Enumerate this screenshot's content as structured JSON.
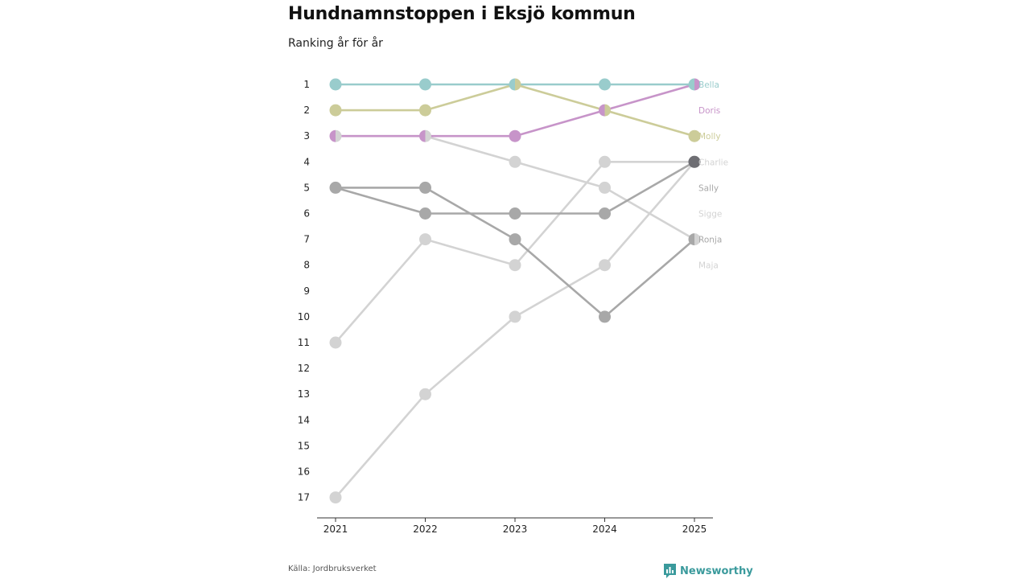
{
  "chart_data": {
    "type": "line",
    "title": "Hundnamnstoppen i Eksjö kommun",
    "subtitle": "Ranking år för år",
    "x": [
      "2021",
      "2022",
      "2023",
      "2024",
      "2025"
    ],
    "y_ticks": [
      "1",
      "2",
      "3",
      "4",
      "5",
      "6",
      "7",
      "8",
      "9",
      "10",
      "11",
      "12",
      "13",
      "14",
      "15",
      "16",
      "17"
    ],
    "ylim": [
      1,
      17
    ],
    "series": [
      {
        "name": "Maja",
        "color": "#d3d3d3",
        "ranks": [
          17,
          13,
          10,
          8,
          4
        ]
      },
      {
        "name": "Sigge",
        "color": "#d3d3d3",
        "ranks": [
          11,
          7,
          8,
          4,
          4
        ]
      },
      {
        "name": "Charlie",
        "color": "#d3d3d3",
        "ranks": [
          3,
          3,
          4,
          5,
          7
        ]
      },
      {
        "name": "Ronja",
        "color": "#a8a8a8",
        "ranks": [
          5,
          5,
          7,
          10,
          7
        ]
      },
      {
        "name": "Sally",
        "color": "#a8a8a8",
        "ranks": [
          5,
          6,
          6,
          6,
          4
        ]
      },
      {
        "name": "Molly",
        "color": "#cccc99",
        "ranks": [
          2,
          2,
          1,
          2,
          3
        ]
      },
      {
        "name": "Doris",
        "color": "#c794c9",
        "ranks": [
          3,
          3,
          3,
          2,
          1
        ]
      },
      {
        "name": "Bella",
        "color": "#99cccc",
        "ranks": [
          1,
          1,
          1,
          1,
          1
        ]
      }
    ],
    "labels": [
      {
        "name": "Bella",
        "color": "#99cccc",
        "rank": 1
      },
      {
        "name": "Doris",
        "color": "#c794c9",
        "rank": 2
      },
      {
        "name": "Molly",
        "color": "#cccc99",
        "rank": 3
      },
      {
        "name": "Charlie",
        "color": "#d3d3d3",
        "rank": 4
      },
      {
        "name": "Sally",
        "color": "#a8a8a8",
        "rank": 5
      },
      {
        "name": "Sigge",
        "color": "#d3d3d3",
        "rank": 6
      },
      {
        "name": "Ronja",
        "color": "#a8a8a8",
        "rank": 7
      },
      {
        "name": "Maja",
        "color": "#d3d3d3",
        "rank": 8
      }
    ]
  },
  "footer": {
    "source": "Källa: Jordbruksverket",
    "brand": "Newsworthy",
    "brand_color": "#3a9a9c"
  }
}
